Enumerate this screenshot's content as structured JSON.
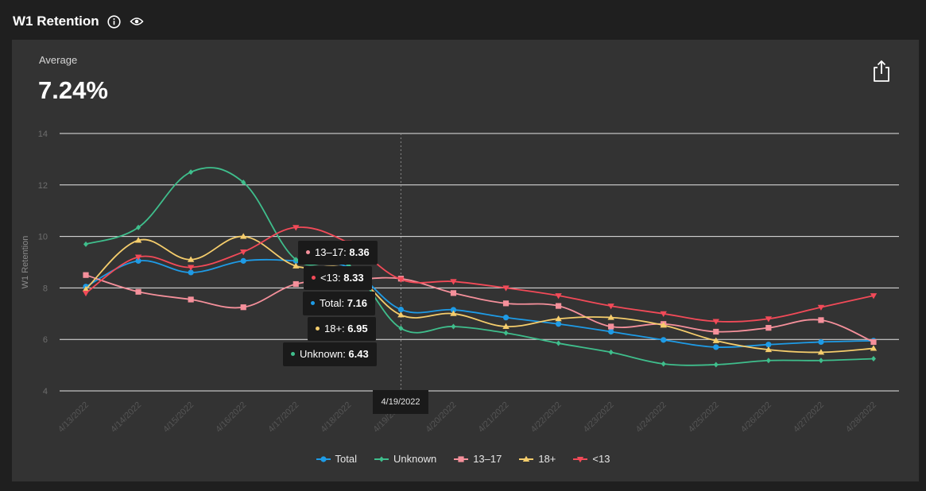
{
  "header": {
    "title": "W1 Retention",
    "info_icon": "info-icon",
    "view_icon": "eye-icon"
  },
  "summary": {
    "label": "Average",
    "value": "7.24%"
  },
  "share_icon": "share-icon",
  "tooltip": {
    "date": "4/19/2022",
    "items": [
      {
        "name": "13–17",
        "value": "8.36",
        "color": "#f5909b"
      },
      {
        "name": "<13",
        "value": "8.33",
        "color": "#f24a58"
      },
      {
        "name": "Total",
        "value": "7.16",
        "color": "#1e9be6"
      },
      {
        "name": "18+",
        "value": "6.95",
        "color": "#f5cd6c"
      },
      {
        "name": "Unknown",
        "value": "6.43",
        "color": "#3fbe8c"
      }
    ]
  },
  "chart_data": {
    "type": "line",
    "ylabel": "W1 Retention",
    "xlabel": "",
    "ylim": [
      4,
      14
    ],
    "yticks": [
      4,
      6,
      8,
      10,
      12,
      14
    ],
    "grid": true,
    "legend_position": "bottom",
    "categories": [
      "4/13/2022",
      "4/14/2022",
      "4/15/2022",
      "4/16/2022",
      "4/17/2022",
      "4/18/2022",
      "4/19/2022",
      "4/20/2022",
      "4/21/2022",
      "4/22/2022",
      "4/23/2022",
      "4/24/2022",
      "4/25/2022",
      "4/26/2022",
      "4/27/2022",
      "4/28/2022"
    ],
    "series": [
      {
        "name": "Total",
        "color": "#1e9be6",
        "marker": "circle",
        "values": [
          8.05,
          9.05,
          8.6,
          9.05,
          9.05,
          8.8,
          7.16,
          7.15,
          6.85,
          6.6,
          6.3,
          5.98,
          5.7,
          5.8,
          5.9,
          5.95
        ]
      },
      {
        "name": "Unknown",
        "color": "#3fbe8c",
        "marker": "diamond",
        "values": [
          9.7,
          10.35,
          12.5,
          12.1,
          9.1,
          8.9,
          6.43,
          6.5,
          6.25,
          5.85,
          5.5,
          5.05,
          5.02,
          5.18,
          5.18,
          5.25
        ]
      },
      {
        "name": "13–17",
        "color": "#f5909b",
        "marker": "square",
        "values": [
          8.5,
          7.85,
          7.55,
          7.25,
          8.15,
          8.3,
          8.36,
          7.8,
          7.4,
          7.3,
          6.5,
          6.6,
          6.3,
          6.45,
          6.75,
          5.9
        ]
      },
      {
        "name": "18+",
        "color": "#f5cd6c",
        "marker": "triangle",
        "values": [
          7.95,
          9.85,
          9.1,
          10.0,
          8.85,
          8.7,
          6.95,
          7.0,
          6.5,
          6.8,
          6.85,
          6.55,
          5.95,
          5.6,
          5.5,
          5.65
        ]
      },
      {
        "name": "<13",
        "color": "#f24a58",
        "marker": "triangle-down",
        "values": [
          7.8,
          9.2,
          8.8,
          9.4,
          10.35,
          9.75,
          8.33,
          8.25,
          8.0,
          7.7,
          7.3,
          7.0,
          6.7,
          6.8,
          7.25,
          7.7
        ]
      }
    ]
  }
}
